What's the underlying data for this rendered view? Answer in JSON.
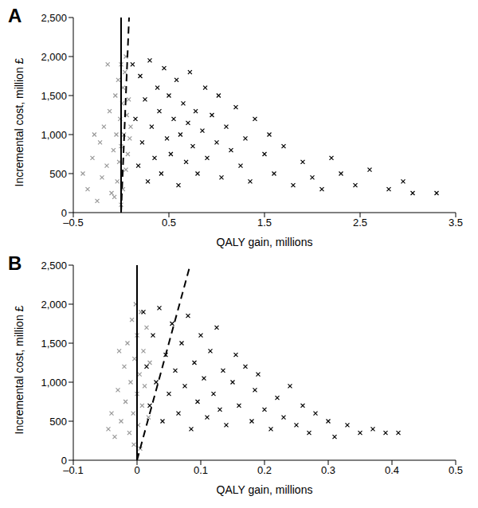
{
  "chart_data": [
    {
      "type": "scatter",
      "title": "A",
      "x_label": "QALY gain, millions",
      "y_label": "Incremental cost, million £",
      "grid": false,
      "xlim": [
        -0.5,
        3.5
      ],
      "xticks": [
        {
          "value": -0.5,
          "label": "–0.5"
        },
        0.5,
        1.5,
        2.5,
        3.5
      ],
      "ylim": [
        0,
        2500
      ],
      "yticks": [
        0,
        500,
        {
          "value": 1000,
          "label": "1,000"
        },
        {
          "value": 1500,
          "label": "1,500"
        },
        {
          "value": 2000,
          "label": "2,000"
        },
        {
          "value": 2500,
          "label": "2,500"
        }
      ],
      "series": [
        {
          "type": "scatter",
          "color": "#999999",
          "marker": "x",
          "x": [
            -0.4,
            -0.35,
            -0.3,
            -0.25,
            -0.22,
            -0.2,
            -0.18,
            -0.15,
            -0.12,
            -0.1,
            -0.08,
            -0.06,
            -0.05,
            -0.04,
            -0.03,
            -0.02,
            -0.01,
            0,
            0,
            0.01,
            0.02,
            0.02,
            0.03,
            0.04,
            0.05,
            0.06,
            0.07,
            0.08,
            0.09,
            0.1,
            -0.28,
            -0.14,
            0.05,
            -0.07,
            0
          ],
          "values": [
            500,
            300,
            700,
            150,
            900,
            450,
            1100,
            600,
            1300,
            250,
            800,
            1500,
            1000,
            400,
            1700,
            650,
            1200,
            1900,
            850,
            1400,
            300,
            1600,
            1000,
            1800,
            550,
            1250,
            750,
            1450,
            950,
            1100,
            1000,
            1900,
            2000,
            200,
            100
          ]
        },
        {
          "type": "scatter",
          "color": "#000000",
          "marker": "x",
          "x": [
            0.12,
            0.15,
            0.18,
            0.2,
            0.22,
            0.25,
            0.28,
            0.3,
            0.32,
            0.35,
            0.38,
            0.4,
            0.42,
            0.45,
            0.48,
            0.5,
            0.52,
            0.55,
            0.58,
            0.6,
            0.62,
            0.65,
            0.68,
            0.7,
            0.72,
            0.75,
            0.78,
            0.8,
            0.85,
            0.88,
            0.9,
            0.95,
            1.0,
            1.02,
            1.05,
            1.1,
            1.15,
            1.2,
            1.25,
            1.3,
            1.35,
            1.4,
            1.5,
            1.55,
            1.6,
            1.7,
            1.8,
            1.9,
            2.0,
            2.1,
            2.2,
            2.3,
            2.45,
            2.6,
            2.8,
            2.95,
            3.05,
            3.3
          ],
          "values": [
            1900,
            1200,
            600,
            1750,
            900,
            1450,
            400,
            1950,
            1100,
            700,
            1600,
            1300,
            500,
            1850,
            950,
            1500,
            750,
            1200,
            1700,
            350,
            1000,
            1400,
            650,
            1150,
            1800,
            850,
            1300,
            500,
            1050,
            1600,
            700,
            1250,
            900,
            1500,
            450,
            1100,
            800,
            1350,
            600,
            950,
            400,
            1200,
            750,
            1000,
            500,
            850,
            350,
            650,
            450,
            300,
            700,
            500,
            350,
            550,
            300,
            400,
            250,
            250
          ]
        },
        {
          "type": "line",
          "color": "#000000",
          "line_style": "solid",
          "x": [
            0,
            0
          ],
          "values": [
            0,
            2500
          ]
        },
        {
          "type": "line",
          "color": "#000000",
          "line_style": "dashed",
          "x": [
            0,
            0.0833
          ],
          "values": [
            0,
            2500
          ]
        }
      ]
    },
    {
      "type": "scatter",
      "title": "B",
      "x_label": "QALY gain, millions",
      "y_label": "Incremental cost, million £",
      "grid": false,
      "xlim": [
        -0.1,
        0.5
      ],
      "xticks": [
        {
          "value": -0.1,
          "label": "–0.1"
        },
        0,
        0.1,
        0.2,
        0.3,
        0.4,
        0.5
      ],
      "ylim": [
        0,
        2500
      ],
      "yticks": [
        0,
        500,
        {
          "value": 1000,
          "label": "1,000"
        },
        {
          "value": 1500,
          "label": "1,500"
        },
        {
          "value": 2000,
          "label": "2,000"
        },
        {
          "value": 2500,
          "label": "2,500"
        }
      ],
      "series": [
        {
          "type": "scatter",
          "color": "#999999",
          "marker": "x",
          "x": [
            -0.045,
            -0.04,
            -0.035,
            -0.03,
            -0.025,
            -0.02,
            -0.018,
            -0.015,
            -0.012,
            -0.01,
            -0.008,
            -0.006,
            -0.004,
            -0.002,
            0,
            0,
            0.002,
            0.004,
            0.006,
            0.008,
            0.01,
            0.012,
            0.015,
            0.018,
            0.02,
            -0.005,
            0.005,
            -0.028
          ],
          "values": [
            400,
            600,
            300,
            900,
            500,
            1200,
            750,
            1500,
            350,
            1000,
            1800,
            600,
            1300,
            2000,
            850,
            1600,
            450,
            1100,
            1900,
            700,
            1400,
            950,
            1700,
            550,
            1250,
            200,
            150,
            1400
          ]
        },
        {
          "type": "scatter",
          "color": "#000000",
          "marker": "x",
          "x": [
            0.01,
            0.015,
            0.02,
            0.025,
            0.03,
            0.035,
            0.04,
            0.045,
            0.05,
            0.055,
            0.06,
            0.065,
            0.07,
            0.075,
            0.08,
            0.085,
            0.09,
            0.095,
            0.1,
            0.105,
            0.11,
            0.115,
            0.12,
            0.125,
            0.13,
            0.135,
            0.14,
            0.15,
            0.155,
            0.16,
            0.17,
            0.18,
            0.185,
            0.19,
            0.2,
            0.21,
            0.22,
            0.23,
            0.24,
            0.25,
            0.26,
            0.27,
            0.28,
            0.3,
            0.31,
            0.33,
            0.35,
            0.37,
            0.39,
            0.41
          ],
          "values": [
            1900,
            1200,
            700,
            1600,
            1000,
            1950,
            500,
            1350,
            850,
            1750,
            1150,
            600,
            1500,
            950,
            1850,
            400,
            1250,
            750,
            1600,
            1050,
            550,
            1400,
            850,
            1700,
            650,
            1150,
            450,
            1000,
            1350,
            700,
            1200,
            500,
            900,
            1100,
            650,
            400,
            800,
            550,
            950,
            450,
            700,
            350,
            600,
            500,
            300,
            450,
            350,
            400,
            350,
            350
          ]
        },
        {
          "type": "line",
          "color": "#000000",
          "line_style": "solid",
          "x": [
            0,
            0
          ],
          "values": [
            0,
            2500
          ]
        },
        {
          "type": "line",
          "color": "#000000",
          "line_style": "dashed",
          "x": [
            0,
            0.0833
          ],
          "values": [
            0,
            2500
          ]
        }
      ]
    }
  ]
}
